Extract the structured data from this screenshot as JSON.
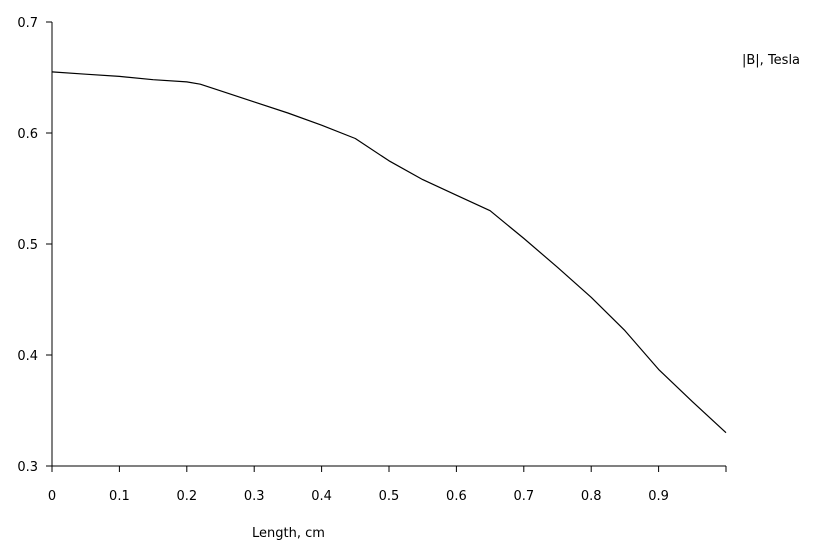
{
  "chart_data": {
    "type": "line",
    "title": "",
    "xlabel": "Length, cm",
    "ylabel": "|B|, Tesla",
    "xlim": [
      0,
      1
    ],
    "ylim": [
      0.3,
      0.7
    ],
    "x_ticks": [
      0,
      0.1,
      0.2,
      0.3,
      0.4,
      0.5,
      0.6,
      0.7,
      0.8,
      0.9,
      1.0
    ],
    "x_tick_labels": [
      "0",
      "0.1",
      "0.2",
      "0.3",
      "0.4",
      "0.5",
      "0.6",
      "0.7",
      "0.8",
      "0.9",
      ""
    ],
    "y_ticks": [
      0.3,
      0.4,
      0.5,
      0.6,
      0.7
    ],
    "y_tick_labels": [
      "0.3",
      "0.4",
      "0.5",
      "0.6",
      "0.7"
    ],
    "grid": false,
    "legend": "none",
    "series": [
      {
        "color": "#000000",
        "x": [
          0,
          0.05,
          0.1,
          0.15,
          0.2,
          0.22,
          0.25,
          0.3,
          0.35,
          0.4,
          0.45,
          0.5,
          0.55,
          0.6,
          0.65,
          0.7,
          0.75,
          0.8,
          0.85,
          0.9,
          0.95,
          1.0
        ],
        "y": [
          0.655,
          0.653,
          0.651,
          0.648,
          0.646,
          0.644,
          0.638,
          0.628,
          0.618,
          0.607,
          0.595,
          0.575,
          0.558,
          0.544,
          0.53,
          0.505,
          0.479,
          0.452,
          0.422,
          0.387,
          0.358,
          0.33
        ]
      }
    ]
  }
}
